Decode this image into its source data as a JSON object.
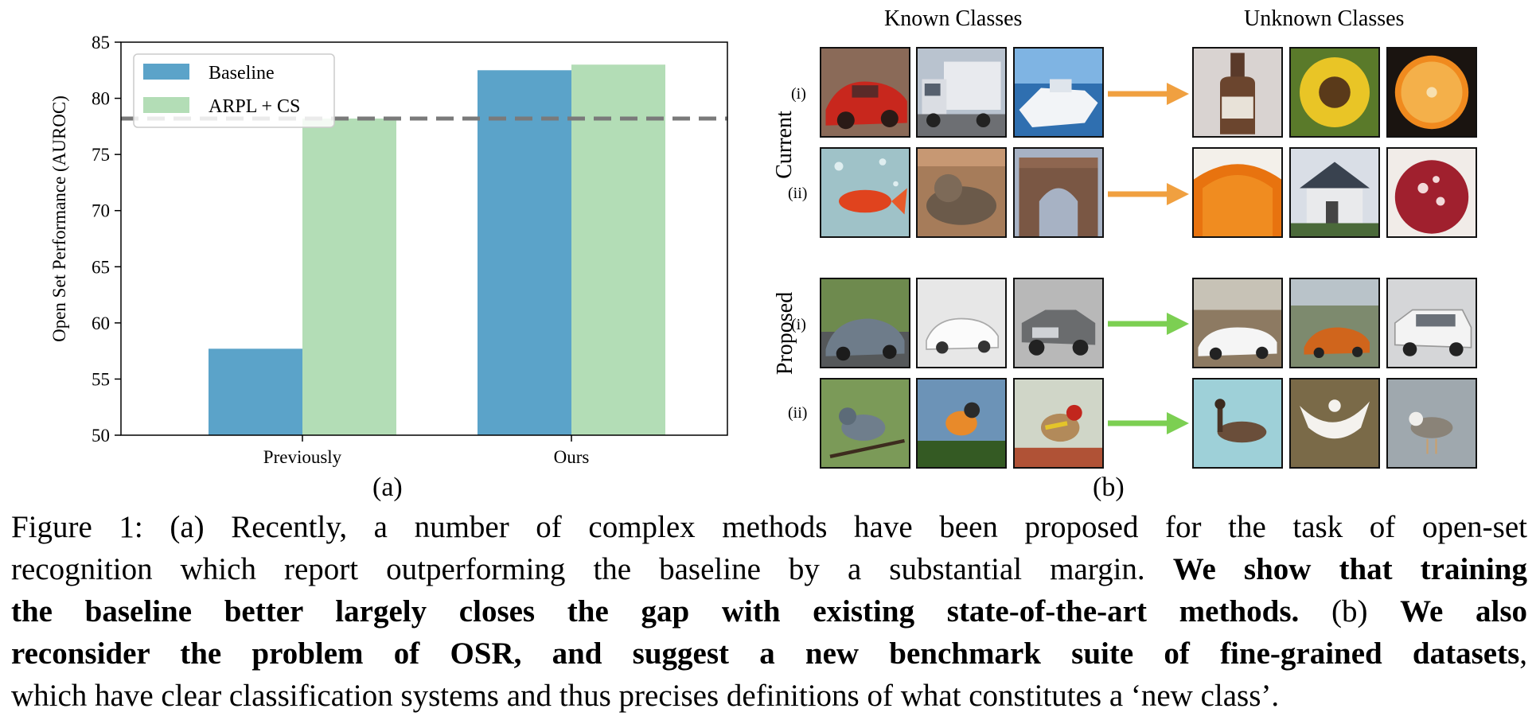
{
  "chart_data": {
    "type": "bar",
    "categories": [
      "Previously",
      "Ours"
    ],
    "series": [
      {
        "name": "Baseline",
        "values": [
          57.7,
          82.5
        ],
        "color": "#5ba3c9"
      },
      {
        "name": "ARPL + CS",
        "values": [
          78.2,
          83.0
        ],
        "color": "#b3ddb6"
      }
    ],
    "reference_line": {
      "value": 78.2,
      "style": "dashed",
      "color": "#7a7a7a"
    },
    "ylabel": "Open Set Performance (AUROC)",
    "xlabel": "",
    "ylim": [
      50,
      85
    ],
    "yticks": [
      50,
      55,
      60,
      65,
      70,
      75,
      80,
      85
    ],
    "legend_position": "top-left",
    "grid": false
  },
  "panel_a_label": "(a)",
  "panel_b_label": "(b)",
  "figure_b": {
    "known_header": "Known Classes",
    "unknown_header": "Unknown Classes",
    "groups": [
      {
        "label": "Current",
        "rows": [
          {
            "label": "(i)",
            "arrow_color": "#f0a040"
          },
          {
            "label": "(ii)",
            "arrow_color": "#f0a040"
          }
        ]
      },
      {
        "label": "Proposed",
        "rows": [
          {
            "label": "(i)",
            "arrow_color": "#7ccf52"
          },
          {
            "label": "(ii)",
            "arrow_color": "#7ccf52"
          }
        ]
      }
    ]
  },
  "caption": {
    "l1": "Figure 1: (a) Recently, a number of complex methods have been proposed for the task of open-set",
    "l2a": "recognition which report outperforming the baseline by a substantial margin. ",
    "l2b": "We show that training",
    "l3a": "the baseline better largely closes the gap with existing state-of-the-art methods.",
    "l3b": " (b) ",
    "l3c": "We also",
    "l4a": "reconsider the problem of OSR, and suggest a new benchmark suite of fine-grained datasets",
    "l4b": ",",
    "l5": "which have clear classification systems and thus precises definitions of what constitutes a ‘new class’."
  }
}
